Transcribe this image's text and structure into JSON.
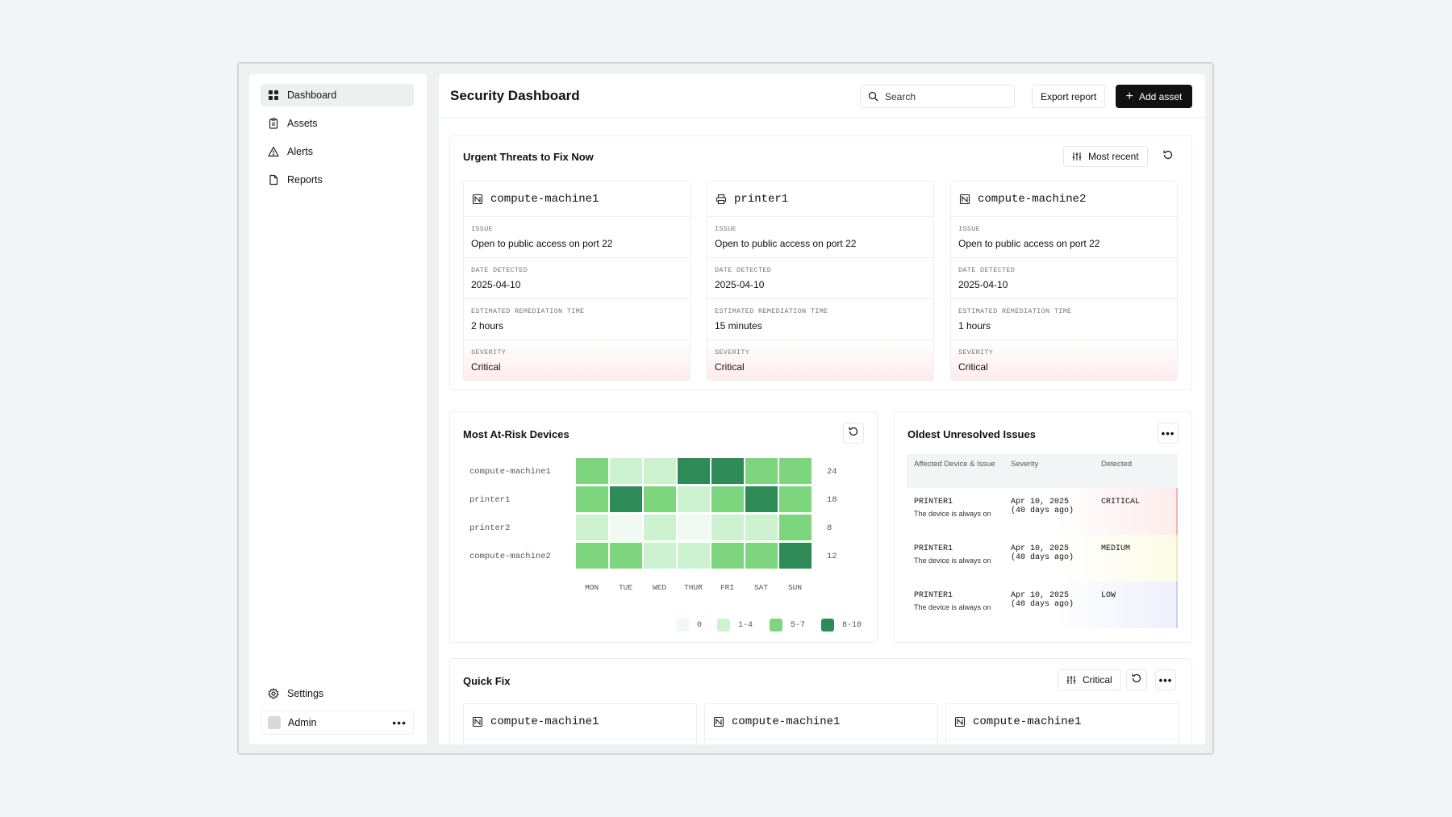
{
  "sidebar": {
    "items": [
      {
        "label": "Dashboard",
        "icon": "grid-icon"
      },
      {
        "label": "Assets",
        "icon": "clipboard-icon"
      },
      {
        "label": "Alerts",
        "icon": "warning-icon"
      },
      {
        "label": "Reports",
        "icon": "file-icon"
      }
    ],
    "settings_label": "Settings",
    "user_name": "Admin"
  },
  "header": {
    "title": "Security Dashboard",
    "search_placeholder": "Search",
    "export_label": "Export report",
    "add_label": "Add asset"
  },
  "urgent": {
    "title": "Urgent Threats to Fix Now",
    "sort_label": "Most recent",
    "field_labels": {
      "issue": "Issue",
      "date": "Date detected",
      "time": "Estimated remediation time",
      "severity": "Severity"
    },
    "cards": [
      {
        "device": "compute-machine1",
        "icon": "server-icon",
        "issue": "Open to public access on port 22",
        "date": "2025-04-10",
        "time": "2 hours",
        "severity": "Critical"
      },
      {
        "device": "printer1",
        "icon": "printer-icon",
        "issue": "Open to public access on port 22",
        "date": "2025-04-10",
        "time": "15 minutes",
        "severity": "Critical"
      },
      {
        "device": "compute-machine2",
        "icon": "server-icon",
        "issue": "Open to public access on port 22",
        "date": "2025-04-10",
        "time": "1 hours",
        "severity": "Critical"
      }
    ]
  },
  "heatmap": {
    "title": "Most At-Risk Devices",
    "days": [
      "MON",
      "TUE",
      "WED",
      "THUR",
      "FRI",
      "SAT",
      "SUN"
    ],
    "rows": [
      {
        "device": "compute-machine1",
        "total": "24",
        "levels": [
          2,
          1,
          1,
          3,
          3,
          2,
          2
        ]
      },
      {
        "device": "printer1",
        "total": "18",
        "levels": [
          2,
          3,
          2,
          1,
          2,
          3,
          2
        ]
      },
      {
        "device": "printer2",
        "total": "8",
        "levels": [
          1,
          0,
          1,
          0,
          1,
          1,
          2
        ]
      },
      {
        "device": "compute-machine2",
        "total": "12",
        "levels": [
          2,
          2,
          1,
          1,
          2,
          2,
          3
        ]
      }
    ],
    "legend": [
      {
        "label": "0",
        "color": "#f1faf2"
      },
      {
        "label": "1-4",
        "color": "#cdf2cf"
      },
      {
        "label": "5-7",
        "color": "#7dd67e"
      },
      {
        "label": "8-10",
        "color": "#2e8b57"
      }
    ]
  },
  "oldest": {
    "title": "Oldest Unresolved Issues",
    "columns": [
      "Affected Device & Issue",
      "Severity",
      "Detected"
    ],
    "rows": [
      {
        "device": "PRINTER1",
        "issue": "The device is always on",
        "detected": "Apr 10, 2025",
        "ago": "(40 days ago)",
        "severity": "CRITICAL",
        "tint": "#fdecec",
        "bar": "#f3b5b5"
      },
      {
        "device": "PRINTER1",
        "issue": "The device is always on",
        "detected": "Apr 10, 2025",
        "ago": "(40 days ago)",
        "severity": "MEDIUM",
        "tint": "#fcfbe6",
        "bar": "#f0ecb4"
      },
      {
        "device": "PRINTER1",
        "issue": "The device is always on",
        "detected": "Apr 10, 2025",
        "ago": "(40 days ago)",
        "severity": "LOW",
        "tint": "#eef0fc",
        "bar": "#c9cdf2"
      }
    ]
  },
  "quickfix": {
    "title": "Quick Fix",
    "filter_label": "Critical",
    "cards": [
      {
        "device": "compute-machine1"
      },
      {
        "device": "compute-machine1"
      },
      {
        "device": "compute-machine1"
      }
    ]
  }
}
